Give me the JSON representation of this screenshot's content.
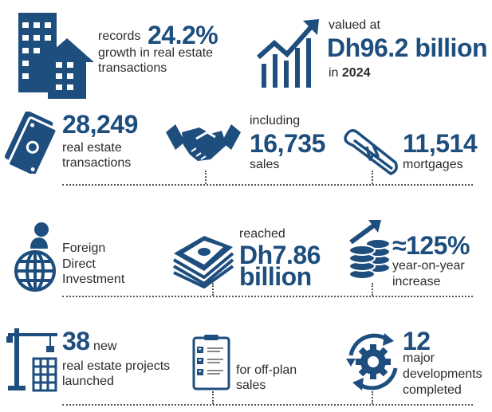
{
  "accent_color": "#1d4e7e",
  "stats": {
    "growth": {
      "prefix": "records",
      "value": "24.2%",
      "line1": "growth in real estate",
      "line2": "transactions",
      "icon": "buildings-icon"
    },
    "valued": {
      "prefix": "valued at",
      "value": "Dh96.2 billion",
      "suffix_in": "in",
      "year": "2024",
      "icon": "growth-chart-icon"
    },
    "transactions": {
      "value": "28,249",
      "line1": "real estate",
      "line2": "transactions",
      "icon": "money-icon"
    },
    "sales": {
      "prefix": "including",
      "value": "16,735",
      "label": "sales",
      "icon": "handshake-icon"
    },
    "mortgages": {
      "value": "11,514",
      "label": "mortgages",
      "icon": "diploma-scroll-icon"
    },
    "fdi": {
      "line1": "Foreign",
      "line2": "Direct",
      "line3": "Investment",
      "icon": "globe-person-icon"
    },
    "fdi_value": {
      "prefix": "reached",
      "value1": "Dh7.86",
      "value2": "billion",
      "icon": "cash-stack-icon"
    },
    "fdi_growth": {
      "value": "≈125%",
      "line1": "year-on-year",
      "line2": "increase",
      "icon": "coins-arrow-icon"
    },
    "projects": {
      "value": "38",
      "suffix": "new",
      "line1": "real estate projects",
      "line2": "launched",
      "icon": "crane-icon"
    },
    "offplan": {
      "line1": "for off-plan",
      "line2": "sales",
      "icon": "clipboard-checklist-icon"
    },
    "developments": {
      "value": "12",
      "line1": "major",
      "line2": "developments",
      "line3": "completed",
      "icon": "gear-cycle-icon"
    }
  }
}
